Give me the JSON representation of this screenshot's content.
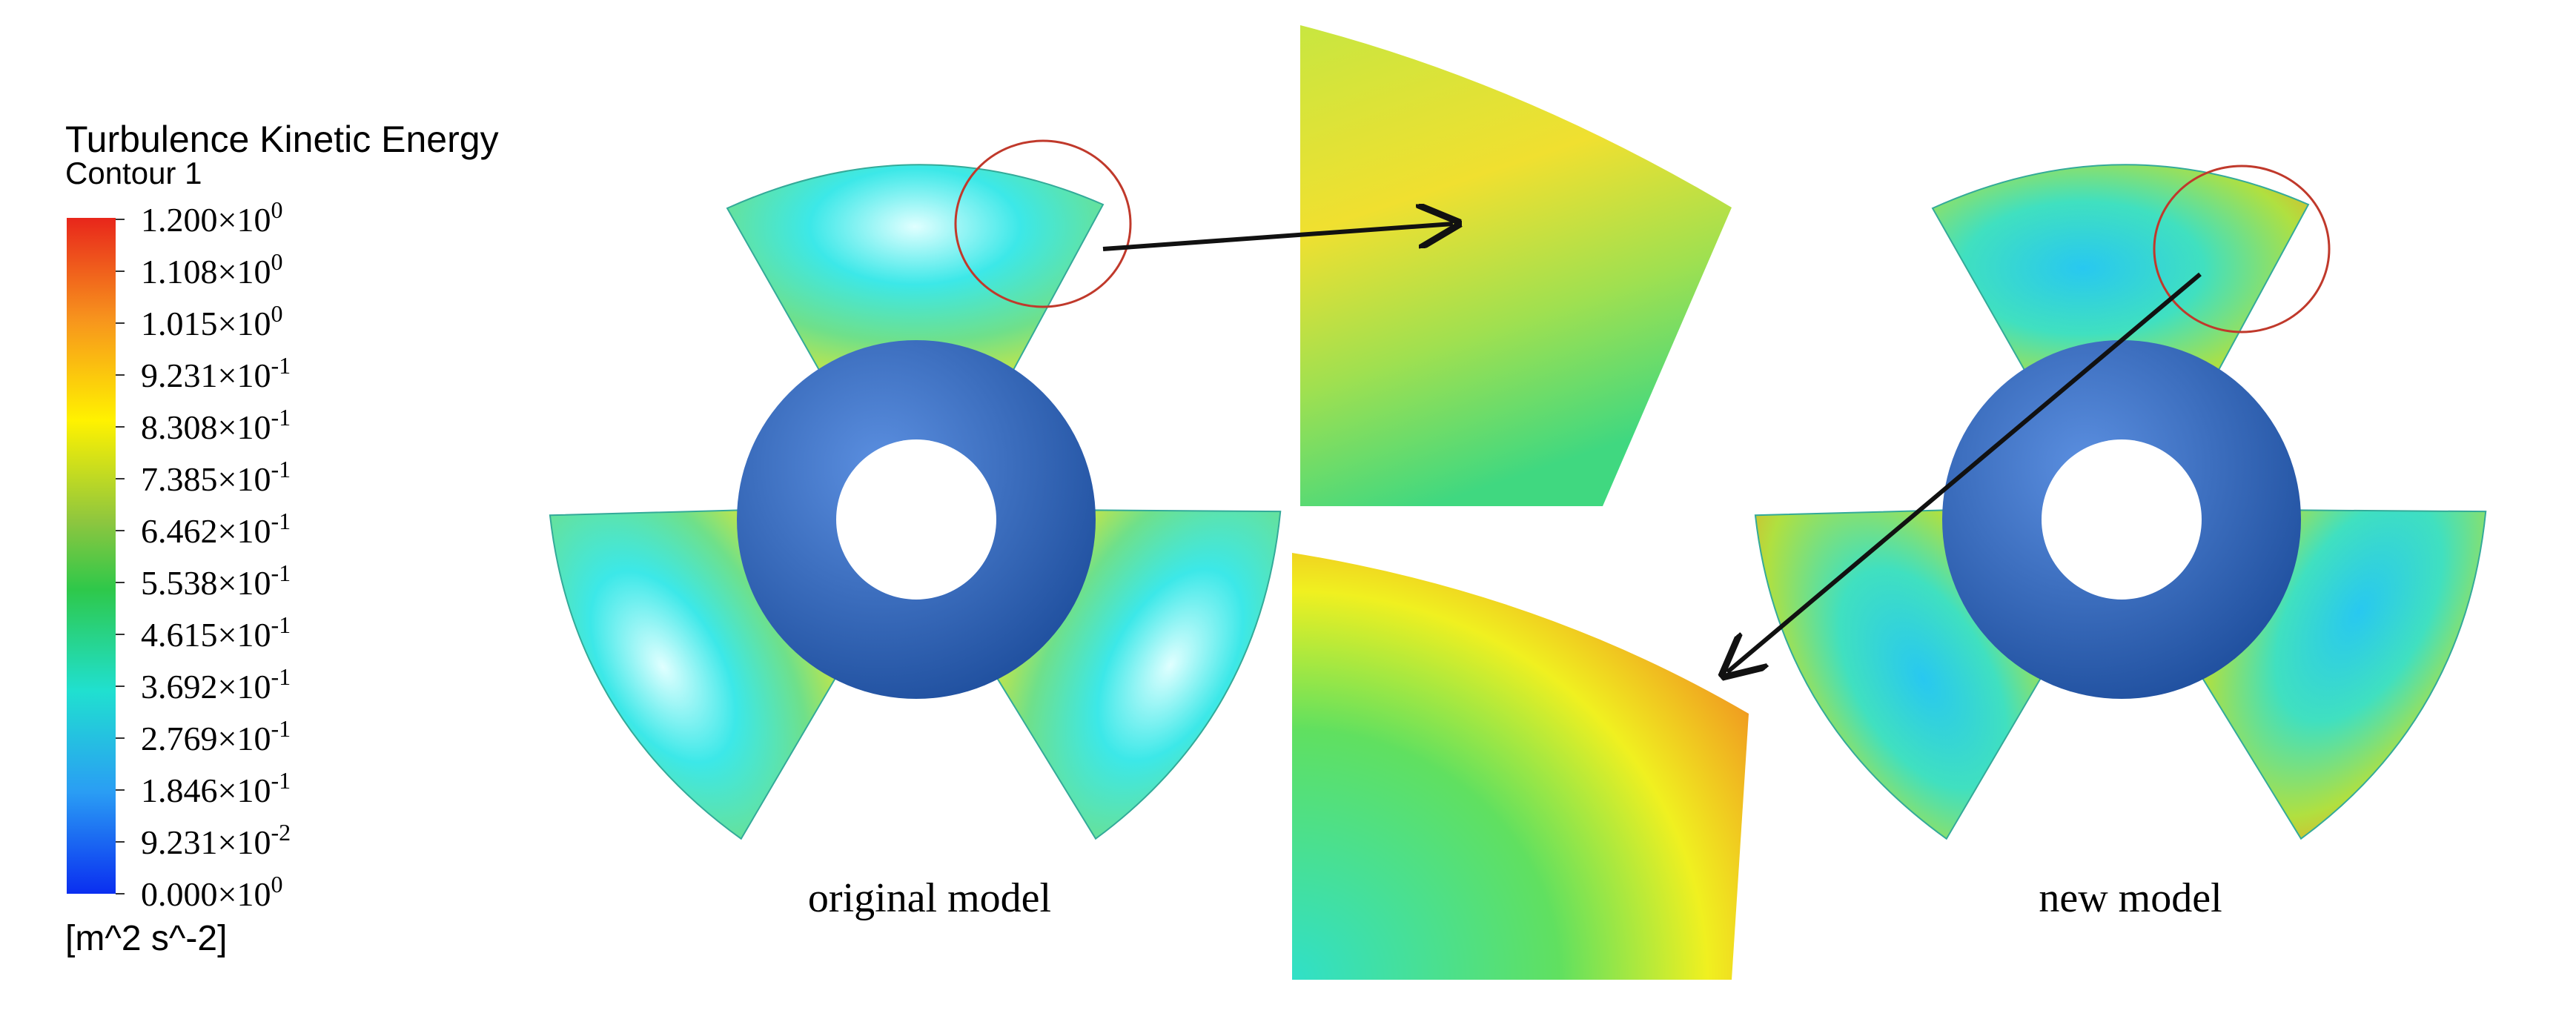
{
  "legend": {
    "title": "Turbulence Kinetic Energy",
    "subtitle": "Contour 1",
    "labels": [
      {
        "mantissa": "1.200×10",
        "exponent": "0"
      },
      {
        "mantissa": "1.108×10",
        "exponent": "0"
      },
      {
        "mantissa": "1.015×10",
        "exponent": "0"
      },
      {
        "mantissa": "9.231×10",
        "exponent": "-1"
      },
      {
        "mantissa": "8.308×10",
        "exponent": "-1"
      },
      {
        "mantissa": "7.385×10",
        "exponent": "-1"
      },
      {
        "mantissa": "6.462×10",
        "exponent": "-1"
      },
      {
        "mantissa": "5.538×10",
        "exponent": "-1"
      },
      {
        "mantissa": "4.615×10",
        "exponent": "-1"
      },
      {
        "mantissa": "3.692×10",
        "exponent": "-1"
      },
      {
        "mantissa": "2.769×10",
        "exponent": "-1"
      },
      {
        "mantissa": "1.846×10",
        "exponent": "-1"
      },
      {
        "mantissa": "9.231×10",
        "exponent": "-2"
      },
      {
        "mantissa": "0.000×10",
        "exponent": "0"
      }
    ],
    "unit": "[m^2 s^-2]"
  },
  "captions": {
    "left": "original model",
    "right": "new model"
  }
}
